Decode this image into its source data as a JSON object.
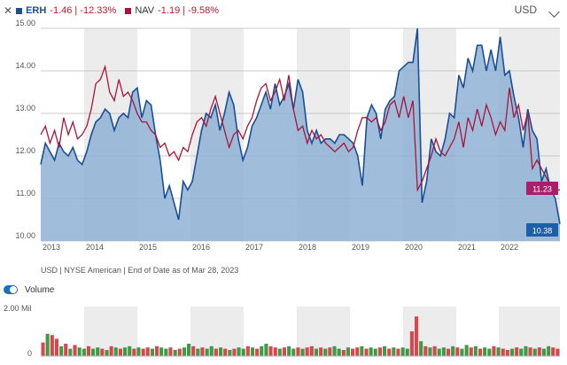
{
  "legend": {
    "close_icon": "close-icon",
    "erh_name": "ERH",
    "erh_change": "-1.46 | -12.33%",
    "nav_name": "NAV",
    "nav_change": "-1.19 | -9.58%"
  },
  "currency": "USD",
  "footnote": "USD | NYSE American | End of Date as of Mar 28, 2023",
  "volume": {
    "label": "Volume",
    "enabled": true
  },
  "colors": {
    "price_line": "#1a4f95",
    "price_fill": "#8fb2d6",
    "nav_line": "#a8143c",
    "nav_badge": "#a8206a",
    "price_badge": "#1a5fa8",
    "vol_up": "#3d9a47",
    "vol_down": "#d9464d",
    "band": "#ececec"
  },
  "chart_data": [
    {
      "type": "area",
      "x_start": "2013-01",
      "x_end": "2023-03",
      "ylim": [
        10.0,
        15.0
      ],
      "y_ticks": [
        "15.00",
        "14.00",
        "13.00",
        "12.00",
        "11.00",
        "10.00"
      ],
      "x_ticks": [
        "2013",
        "2014",
        "2015",
        "2016",
        "2017",
        "2018",
        "2019",
        "2020",
        "2021",
        "2022"
      ],
      "series": [
        {
          "name": "ERH",
          "last_label": "10.38",
          "values": [
            11.8,
            12.3,
            12.1,
            11.9,
            12.3,
            12.1,
            12.0,
            12.2,
            11.9,
            11.8,
            12.1,
            12.5,
            12.8,
            12.9,
            13.1,
            13.0,
            12.6,
            12.9,
            13.0,
            12.9,
            13.5,
            13.6,
            12.9,
            13.3,
            13.2,
            12.5,
            11.9,
            11.0,
            11.3,
            10.9,
            10.5,
            11.4,
            11.2,
            11.4,
            12.0,
            12.6,
            13.0,
            12.9,
            13.2,
            12.6,
            13.0,
            13.5,
            13.2,
            12.4,
            11.9,
            12.2,
            12.7,
            12.9,
            13.2,
            13.5,
            13.1,
            13.7,
            13.2,
            13.4,
            13.7,
            13.1,
            13.8,
            13.5,
            12.6,
            12.3,
            12.6,
            12.3,
            12.4,
            12.4,
            12.3,
            12.5,
            12.5,
            12.4,
            12.3,
            12.0,
            11.3,
            12.9,
            13.2,
            13.0,
            12.4,
            13.1,
            13.3,
            13.4,
            14.0,
            14.1,
            14.2,
            14.2,
            15.0,
            10.9,
            11.4,
            12.4,
            12.1,
            12.0,
            12.4,
            13.0,
            12.9,
            13.9,
            13.6,
            14.3,
            14.0,
            14.6,
            14.6,
            14.0,
            14.5,
            14.0,
            14.8,
            13.9,
            14.0,
            13.4,
            12.9,
            12.2,
            13.1,
            12.6,
            12.4,
            11.4,
            11.7,
            11.2,
            11.0,
            10.4
          ],
          "color": "#1a4f95"
        },
        {
          "name": "NAV",
          "last_label": "11.23",
          "values": [
            12.5,
            12.7,
            12.3,
            12.6,
            12.2,
            12.9,
            12.5,
            12.8,
            12.4,
            12.5,
            12.7,
            13.1,
            13.7,
            13.8,
            14.1,
            13.5,
            13.3,
            13.8,
            13.4,
            13.5,
            13.3,
            13.0,
            12.8,
            12.8,
            12.6,
            12.5,
            12.2,
            12.3,
            12.0,
            12.1,
            11.9,
            12.2,
            12.1,
            12.5,
            12.8,
            12.9,
            12.7,
            13.1,
            13.4,
            13.0,
            12.6,
            12.2,
            12.5,
            12.6,
            12.4,
            12.7,
            12.9,
            13.3,
            13.6,
            13.7,
            13.3,
            13.5,
            13.8,
            13.3,
            13.9,
            13.1,
            12.6,
            12.7,
            12.3,
            12.6,
            12.4,
            12.5,
            12.3,
            12.2,
            12.1,
            12.2,
            12.3,
            12.1,
            12.2,
            12.6,
            12.9,
            12.9,
            12.8,
            12.9,
            12.6,
            12.8,
            13.2,
            13.3,
            12.9,
            13.4,
            12.9,
            13.3,
            11.2,
            11.4,
            11.7,
            12.0,
            12.4,
            12.1,
            12.0,
            12.2,
            12.4,
            12.8,
            12.2,
            12.9,
            12.6,
            13.1,
            12.7,
            13.2,
            12.9,
            12.5,
            12.8,
            12.6,
            13.6,
            12.9,
            13.2,
            12.6,
            13.0,
            11.7,
            11.9,
            11.7,
            11.5,
            11.3,
            11.2,
            11.2
          ],
          "color": "#a8143c"
        }
      ]
    },
    {
      "type": "bar",
      "ylim": [
        0,
        2.0
      ],
      "y_ticks": [
        "2.00 Mil",
        "0"
      ],
      "values": [
        0.55,
        0.9,
        0.85,
        0.7,
        0.4,
        0.5,
        0.3,
        0.45,
        0.35,
        0.3,
        0.4,
        0.3,
        0.35,
        0.3,
        0.25,
        0.4,
        0.35,
        0.3,
        0.35,
        0.4,
        0.3,
        0.35,
        0.3,
        0.35,
        0.3,
        0.4,
        0.35,
        0.3,
        0.35,
        0.25,
        0.3,
        0.35,
        0.5,
        0.4,
        0.3,
        0.35,
        0.3,
        0.4,
        0.3,
        0.35,
        0.3,
        0.25,
        0.3,
        0.35,
        0.3,
        0.4,
        0.35,
        0.3,
        0.4,
        0.5,
        0.4,
        0.35,
        0.3,
        0.35,
        0.4,
        0.3,
        0.35,
        0.3,
        0.35,
        0.4,
        0.3,
        0.35,
        0.3,
        0.35,
        0.4,
        0.3,
        0.25,
        0.35,
        0.3,
        0.35,
        0.4,
        0.3,
        0.35,
        0.3,
        0.35,
        0.4,
        0.3,
        0.35,
        0.3,
        0.35,
        0.3,
        1.0,
        1.6,
        0.6,
        0.4,
        0.35,
        0.4,
        0.3,
        0.35,
        0.3,
        0.4,
        0.35,
        0.3,
        0.45,
        0.35,
        0.4,
        0.3,
        0.35,
        0.3,
        0.4,
        0.35,
        0.3,
        0.25,
        0.3,
        0.35,
        0.3,
        0.4,
        0.35,
        0.3,
        0.35,
        0.3,
        0.4,
        0.35,
        0.3
      ],
      "up": [
        false,
        true,
        false,
        false,
        true,
        false,
        true,
        false,
        true,
        true,
        false,
        true,
        true,
        false,
        true,
        false,
        true,
        false,
        true,
        true,
        false,
        true,
        false,
        false,
        true,
        false,
        true,
        true,
        false,
        true,
        false,
        true,
        true,
        false,
        true,
        false,
        true,
        true,
        false,
        true,
        false,
        true,
        false,
        true,
        true,
        false,
        true,
        false,
        true,
        true,
        false,
        false,
        true,
        false,
        true,
        true,
        false,
        true,
        false,
        false,
        true,
        false,
        true,
        false,
        true,
        true,
        false,
        true,
        false,
        false,
        true,
        false,
        true,
        true,
        false,
        true,
        false,
        true,
        false,
        true,
        true,
        false,
        false,
        true,
        false,
        true,
        false,
        true,
        true,
        false,
        true,
        false,
        true,
        true,
        false,
        true,
        false,
        true,
        true,
        false,
        true,
        false,
        false,
        true,
        false,
        true,
        true,
        false,
        true,
        false,
        true,
        true,
        false
      ]
    }
  ]
}
